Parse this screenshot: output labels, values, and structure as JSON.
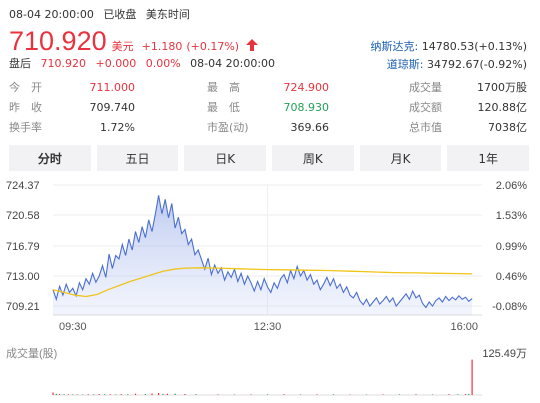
{
  "status": {
    "datetime": "08-04 20:00:00",
    "market_state": "已收盘",
    "timezone": "美东时间"
  },
  "quote": {
    "price": "710.920",
    "currency": "美元",
    "change": "+1.180",
    "change_pct": "(+0.17%)",
    "up_color": "#e8333f"
  },
  "after_hours": {
    "label": "盘后",
    "price": "710.920",
    "change": "+0.000",
    "change_pct": "0.00%",
    "datetime": "08-04 20:00:00"
  },
  "indices": [
    {
      "name": "纳斯达克:",
      "value": "14780.53(+0.13%)"
    },
    {
      "name": "道琼斯:",
      "value": "34792.67(-0.92%)"
    }
  ],
  "stats": [
    [
      {
        "label": "今　开",
        "value": "711.000",
        "tone": "red"
      },
      {
        "label": "最　高",
        "value": "724.900",
        "tone": "red"
      },
      {
        "label": "成交量",
        "value": "1700万股",
        "tone": "plain"
      }
    ],
    [
      {
        "label": "昨　收",
        "value": "709.740",
        "tone": "plain"
      },
      {
        "label": "最　低",
        "value": "708.930",
        "tone": "green"
      },
      {
        "label": "成交额",
        "value": "120.88亿",
        "tone": "plain"
      }
    ],
    [
      {
        "label": "换手率",
        "value": "1.72%",
        "tone": "plain"
      },
      {
        "label": "市盈(动)",
        "value": "369.66",
        "tone": "plain"
      },
      {
        "label": "总市值",
        "value": "7038亿",
        "tone": "plain"
      }
    ]
  ],
  "tabs": [
    {
      "label": "分时",
      "active": true
    },
    {
      "label": "五日",
      "active": false
    },
    {
      "label": "日K",
      "active": false
    },
    {
      "label": "周K",
      "active": false
    },
    {
      "label": "月K",
      "active": false
    },
    {
      "label": "1年",
      "active": false
    }
  ],
  "chart_data": {
    "type": "line",
    "y_ticks": [
      "724.37",
      "720.58",
      "716.79",
      "713.00",
      "709.21"
    ],
    "y_pct_ticks": [
      "2.06%",
      "1.53%",
      "0.99%",
      "0.46%",
      "-0.08%"
    ],
    "x_ticks": [
      "09:30",
      "12:30",
      "16:00"
    ],
    "ylim": [
      707.3,
      726.3
    ],
    "xlim": [
      0,
      390
    ],
    "price_color": "#4a6fd1",
    "avg_color": "#f0c419",
    "price_series": [
      [
        0,
        711.0
      ],
      [
        3,
        709.6
      ],
      [
        6,
        711.5
      ],
      [
        9,
        710.2
      ],
      [
        12,
        711.8
      ],
      [
        15,
        710.6
      ],
      [
        18,
        711.2
      ],
      [
        21,
        710.1
      ],
      [
        24,
        712.0
      ],
      [
        27,
        711.0
      ],
      [
        30,
        712.6
      ],
      [
        33,
        711.8
      ],
      [
        36,
        713.4
      ],
      [
        39,
        712.1
      ],
      [
        42,
        713.0
      ],
      [
        45,
        714.5
      ],
      [
        48,
        712.8
      ],
      [
        51,
        716.2
      ],
      [
        54,
        714.1
      ],
      [
        57,
        716.0
      ],
      [
        60,
        715.5
      ],
      [
        63,
        717.6
      ],
      [
        66,
        716.0
      ],
      [
        69,
        718.4
      ],
      [
        72,
        716.8
      ],
      [
        75,
        719.5
      ],
      [
        78,
        717.9
      ],
      [
        81,
        720.2
      ],
      [
        84,
        718.6
      ],
      [
        87,
        721.2
      ],
      [
        90,
        719.5
      ],
      [
        93,
        722.0
      ],
      [
        96,
        724.8
      ],
      [
        99,
        722.1
      ],
      [
        102,
        724.2
      ],
      [
        105,
        721.5
      ],
      [
        108,
        723.6
      ],
      [
        111,
        720.0
      ],
      [
        114,
        721.6
      ],
      [
        117,
        719.2
      ],
      [
        120,
        719.8
      ],
      [
        123,
        717.6
      ],
      [
        126,
        718.4
      ],
      [
        129,
        716.1
      ],
      [
        132,
        716.8
      ],
      [
        135,
        715.4
      ],
      [
        138,
        714.0
      ],
      [
        141,
        715.6
      ],
      [
        144,
        713.2
      ],
      [
        147,
        714.6
      ],
      [
        150,
        713.4
      ],
      [
        153,
        714.2
      ],
      [
        156,
        712.4
      ],
      [
        159,
        713.6
      ],
      [
        162,
        712.8
      ],
      [
        165,
        714.0
      ],
      [
        168,
        712.2
      ],
      [
        171,
        713.4
      ],
      [
        174,
        711.8
      ],
      [
        177,
        713.0
      ],
      [
        180,
        712.0
      ],
      [
        183,
        710.8
      ],
      [
        186,
        712.2
      ],
      [
        189,
        711.0
      ],
      [
        192,
        712.6
      ],
      [
        195,
        711.4
      ],
      [
        198,
        710.6
      ],
      [
        201,
        712.0
      ],
      [
        204,
        711.2
      ],
      [
        207,
        712.6
      ],
      [
        210,
        713.2
      ],
      [
        213,
        712.0
      ],
      [
        216,
        713.8
      ],
      [
        219,
        712.6
      ],
      [
        222,
        714.4
      ],
      [
        225,
        713.0
      ],
      [
        228,
        713.8
      ],
      [
        231,
        712.4
      ],
      [
        234,
        713.2
      ],
      [
        237,
        711.8
      ],
      [
        240,
        712.4
      ],
      [
        243,
        711.0
      ],
      [
        246,
        711.8
      ],
      [
        249,
        712.8
      ],
      [
        252,
        711.6
      ],
      [
        255,
        712.6
      ],
      [
        258,
        711.2
      ],
      [
        261,
        711.8
      ],
      [
        264,
        710.6
      ],
      [
        267,
        711.4
      ],
      [
        270,
        710.2
      ],
      [
        273,
        709.8
      ],
      [
        276,
        710.6
      ],
      [
        279,
        709.4
      ],
      [
        282,
        708.8
      ],
      [
        285,
        709.6
      ],
      [
        288,
        708.6
      ],
      [
        291,
        709.2
      ],
      [
        294,
        709.8
      ],
      [
        297,
        708.9
      ],
      [
        300,
        709.4
      ],
      [
        303,
        710.0
      ],
      [
        306,
        709.2
      ],
      [
        309,
        709.8
      ],
      [
        312,
        708.6
      ],
      [
        315,
        709.2
      ],
      [
        318,
        709.8
      ],
      [
        321,
        710.4
      ],
      [
        324,
        709.6
      ],
      [
        327,
        710.8
      ],
      [
        330,
        709.8
      ],
      [
        333,
        710.2
      ],
      [
        336,
        709.0
      ],
      [
        339,
        708.4
      ],
      [
        342,
        709.2
      ],
      [
        345,
        708.6
      ],
      [
        348,
        709.4
      ],
      [
        351,
        709.8
      ],
      [
        354,
        709.2
      ],
      [
        357,
        710.0
      ],
      [
        360,
        709.4
      ],
      [
        363,
        709.9
      ],
      [
        366,
        709.5
      ],
      [
        369,
        710.1
      ],
      [
        372,
        709.6
      ],
      [
        375,
        709.9
      ],
      [
        378,
        709.3
      ],
      [
        381,
        709.7
      ]
    ],
    "avg_series": [
      [
        0,
        711.0
      ],
      [
        10,
        710.6
      ],
      [
        20,
        710.2
      ],
      [
        30,
        710.0
      ],
      [
        40,
        710.3
      ],
      [
        50,
        711.0
      ],
      [
        60,
        711.6
      ],
      [
        70,
        712.2
      ],
      [
        80,
        712.7
      ],
      [
        90,
        713.2
      ],
      [
        100,
        713.7
      ],
      [
        110,
        714.0
      ],
      [
        120,
        714.15
      ],
      [
        135,
        714.2
      ],
      [
        150,
        714.15
      ],
      [
        170,
        714.05
      ],
      [
        190,
        713.95
      ],
      [
        210,
        713.9
      ],
      [
        230,
        713.85
      ],
      [
        250,
        713.8
      ],
      [
        270,
        713.7
      ],
      [
        290,
        713.6
      ],
      [
        310,
        713.5
      ],
      [
        330,
        713.45
      ],
      [
        350,
        713.4
      ],
      [
        370,
        713.35
      ],
      [
        381,
        713.3
      ]
    ],
    "volume_label": "成交量(股)",
    "volume_max_label": "125.49万",
    "volume_ylim": [
      0,
      125.49
    ],
    "volume_up_color": "#e8333f",
    "volume_down_color": "#22a05a",
    "volume_series": [
      {
        "up": [
          [
            0,
            8.6
          ],
          [
            6,
            3.1
          ],
          [
            14,
            2.2
          ],
          [
            22,
            1.9
          ],
          [
            32,
            2.4
          ],
          [
            42,
            3.2
          ],
          [
            52,
            2.6
          ],
          [
            62,
            3.0
          ],
          [
            75,
            4.4
          ],
          [
            90,
            5.0
          ],
          [
            96,
            6.8
          ],
          [
            104,
            4.2
          ],
          [
            120,
            3.4
          ],
          [
            150,
            2.0
          ],
          [
            180,
            1.8
          ],
          [
            210,
            2.6
          ],
          [
            240,
            2.0
          ],
          [
            270,
            1.6
          ],
          [
            300,
            1.9
          ],
          [
            330,
            2.2
          ],
          [
            360,
            2.6
          ],
          [
            375,
            3.0
          ],
          [
            381,
            120.0
          ]
        ]
      },
      {
        "down": [
          [
            3,
            4.2
          ],
          [
            10,
            2.6
          ],
          [
            18,
            2.0
          ],
          [
            27,
            1.6
          ],
          [
            37,
            2.2
          ],
          [
            47,
            2.8
          ],
          [
            57,
            1.9
          ],
          [
            68,
            2.7
          ],
          [
            84,
            3.6
          ],
          [
            100,
            3.8
          ],
          [
            111,
            4.6
          ],
          [
            130,
            2.8
          ],
          [
            165,
            1.7
          ],
          [
            195,
            2.2
          ],
          [
            225,
            1.9
          ],
          [
            255,
            2.4
          ],
          [
            285,
            1.7
          ],
          [
            315,
            2.1
          ],
          [
            345,
            1.8
          ],
          [
            368,
            2.3
          ],
          [
            378,
            3.6
          ]
        ]
      }
    ]
  }
}
